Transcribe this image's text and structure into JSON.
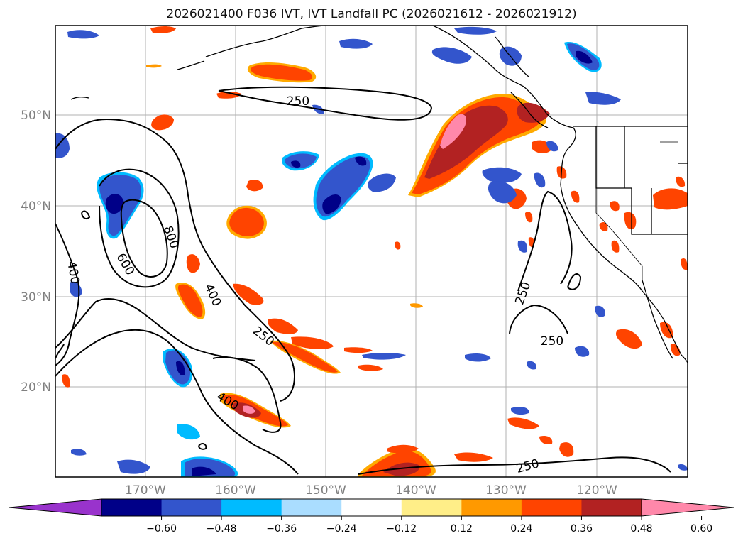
{
  "title": "2026021400 F036 IVT, IVT Landfall PC (2026021612 - 2026021912)",
  "lat_labels": [
    "50°N",
    "40°N",
    "30°N",
    "20°N"
  ],
  "lon_labels": [
    "170°W",
    "160°W",
    "150°W",
    "140°W",
    "130°W",
    "120°W"
  ],
  "contour_labels": [
    "250",
    "800",
    "600",
    "400",
    "400",
    "250",
    "400",
    "250",
    "250",
    "250"
  ],
  "colorbar": {
    "ticks": [
      "−0.60",
      "−0.48",
      "−0.36",
      "−0.24",
      "−0.12",
      "0.12",
      "0.24",
      "0.36",
      "0.48",
      "0.60"
    ],
    "colors": [
      "#9933cc",
      "#000088",
      "#3355cc",
      "#00bbff",
      "#aaddff",
      "#ffffff",
      "#ffee88",
      "#ff9900",
      "#ff4400",
      "#b22222",
      "#ff88aa"
    ]
  },
  "colors": {
    "ocean": "#ffffff",
    "contour": "#000000",
    "grid": "#b0b0b0",
    "coast": "#000000"
  }
}
